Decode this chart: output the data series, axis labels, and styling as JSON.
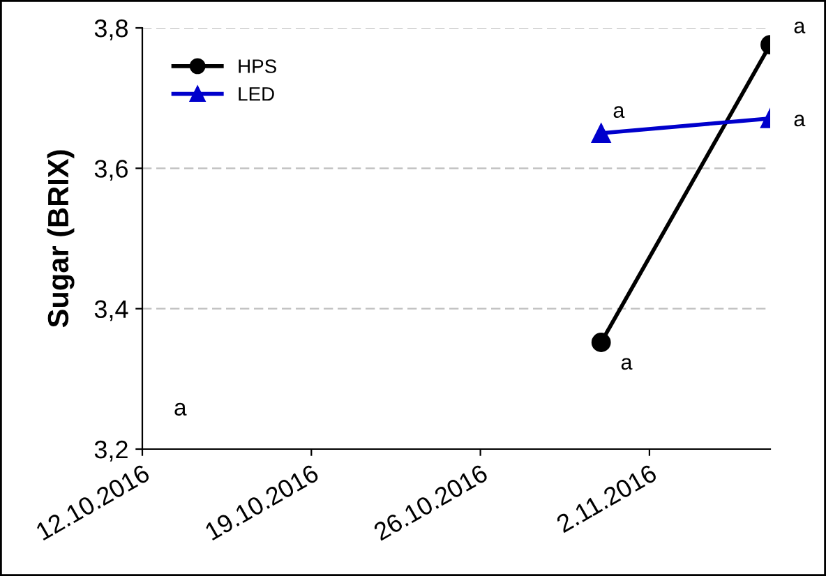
{
  "chart_data": {
    "type": "line",
    "ylabel": "Sugar (BRIX)",
    "x": [
      "2016-10-31",
      "2016-11-07"
    ],
    "series": [
      {
        "name": "HPS",
        "color": "#000000",
        "marker": "circle",
        "values": [
          3.352,
          3.776
        ]
      },
      {
        "name": "LED",
        "color": "#0000cc",
        "marker": "triangle",
        "values": [
          3.65,
          3.671
        ]
      }
    ],
    "xlim": [
      "2016-10-12",
      "2016-11-07"
    ],
    "xticks": [
      {
        "value": "2016-10-12",
        "label": "12.10.2016"
      },
      {
        "value": "2016-10-19",
        "label": "19.10.2016"
      },
      {
        "value": "2016-10-26",
        "label": "26.10.2016"
      },
      {
        "value": "2016-11-02",
        "label": "2.11.2016"
      }
    ],
    "ylim": [
      3.2,
      3.8
    ],
    "yticks": [
      {
        "value": 3.2,
        "label": "3,2"
      },
      {
        "value": 3.4,
        "label": "3,4"
      },
      {
        "value": 3.6,
        "label": "3,6"
      },
      {
        "value": 3.8,
        "label": "3,8"
      }
    ],
    "grid": "y",
    "legend": "top left",
    "line_style": "solid",
    "annotations": [
      {
        "text": "a",
        "x": "2016-10-31",
        "y": 3.352
      },
      {
        "text": "a",
        "x": "2016-11-07",
        "y": 3.776
      },
      {
        "text": "a",
        "x": "2016-10-31",
        "y": 3.65
      },
      {
        "text": "a",
        "x": "2016-11-07",
        "y": 3.671
      },
      "a"
    ]
  }
}
